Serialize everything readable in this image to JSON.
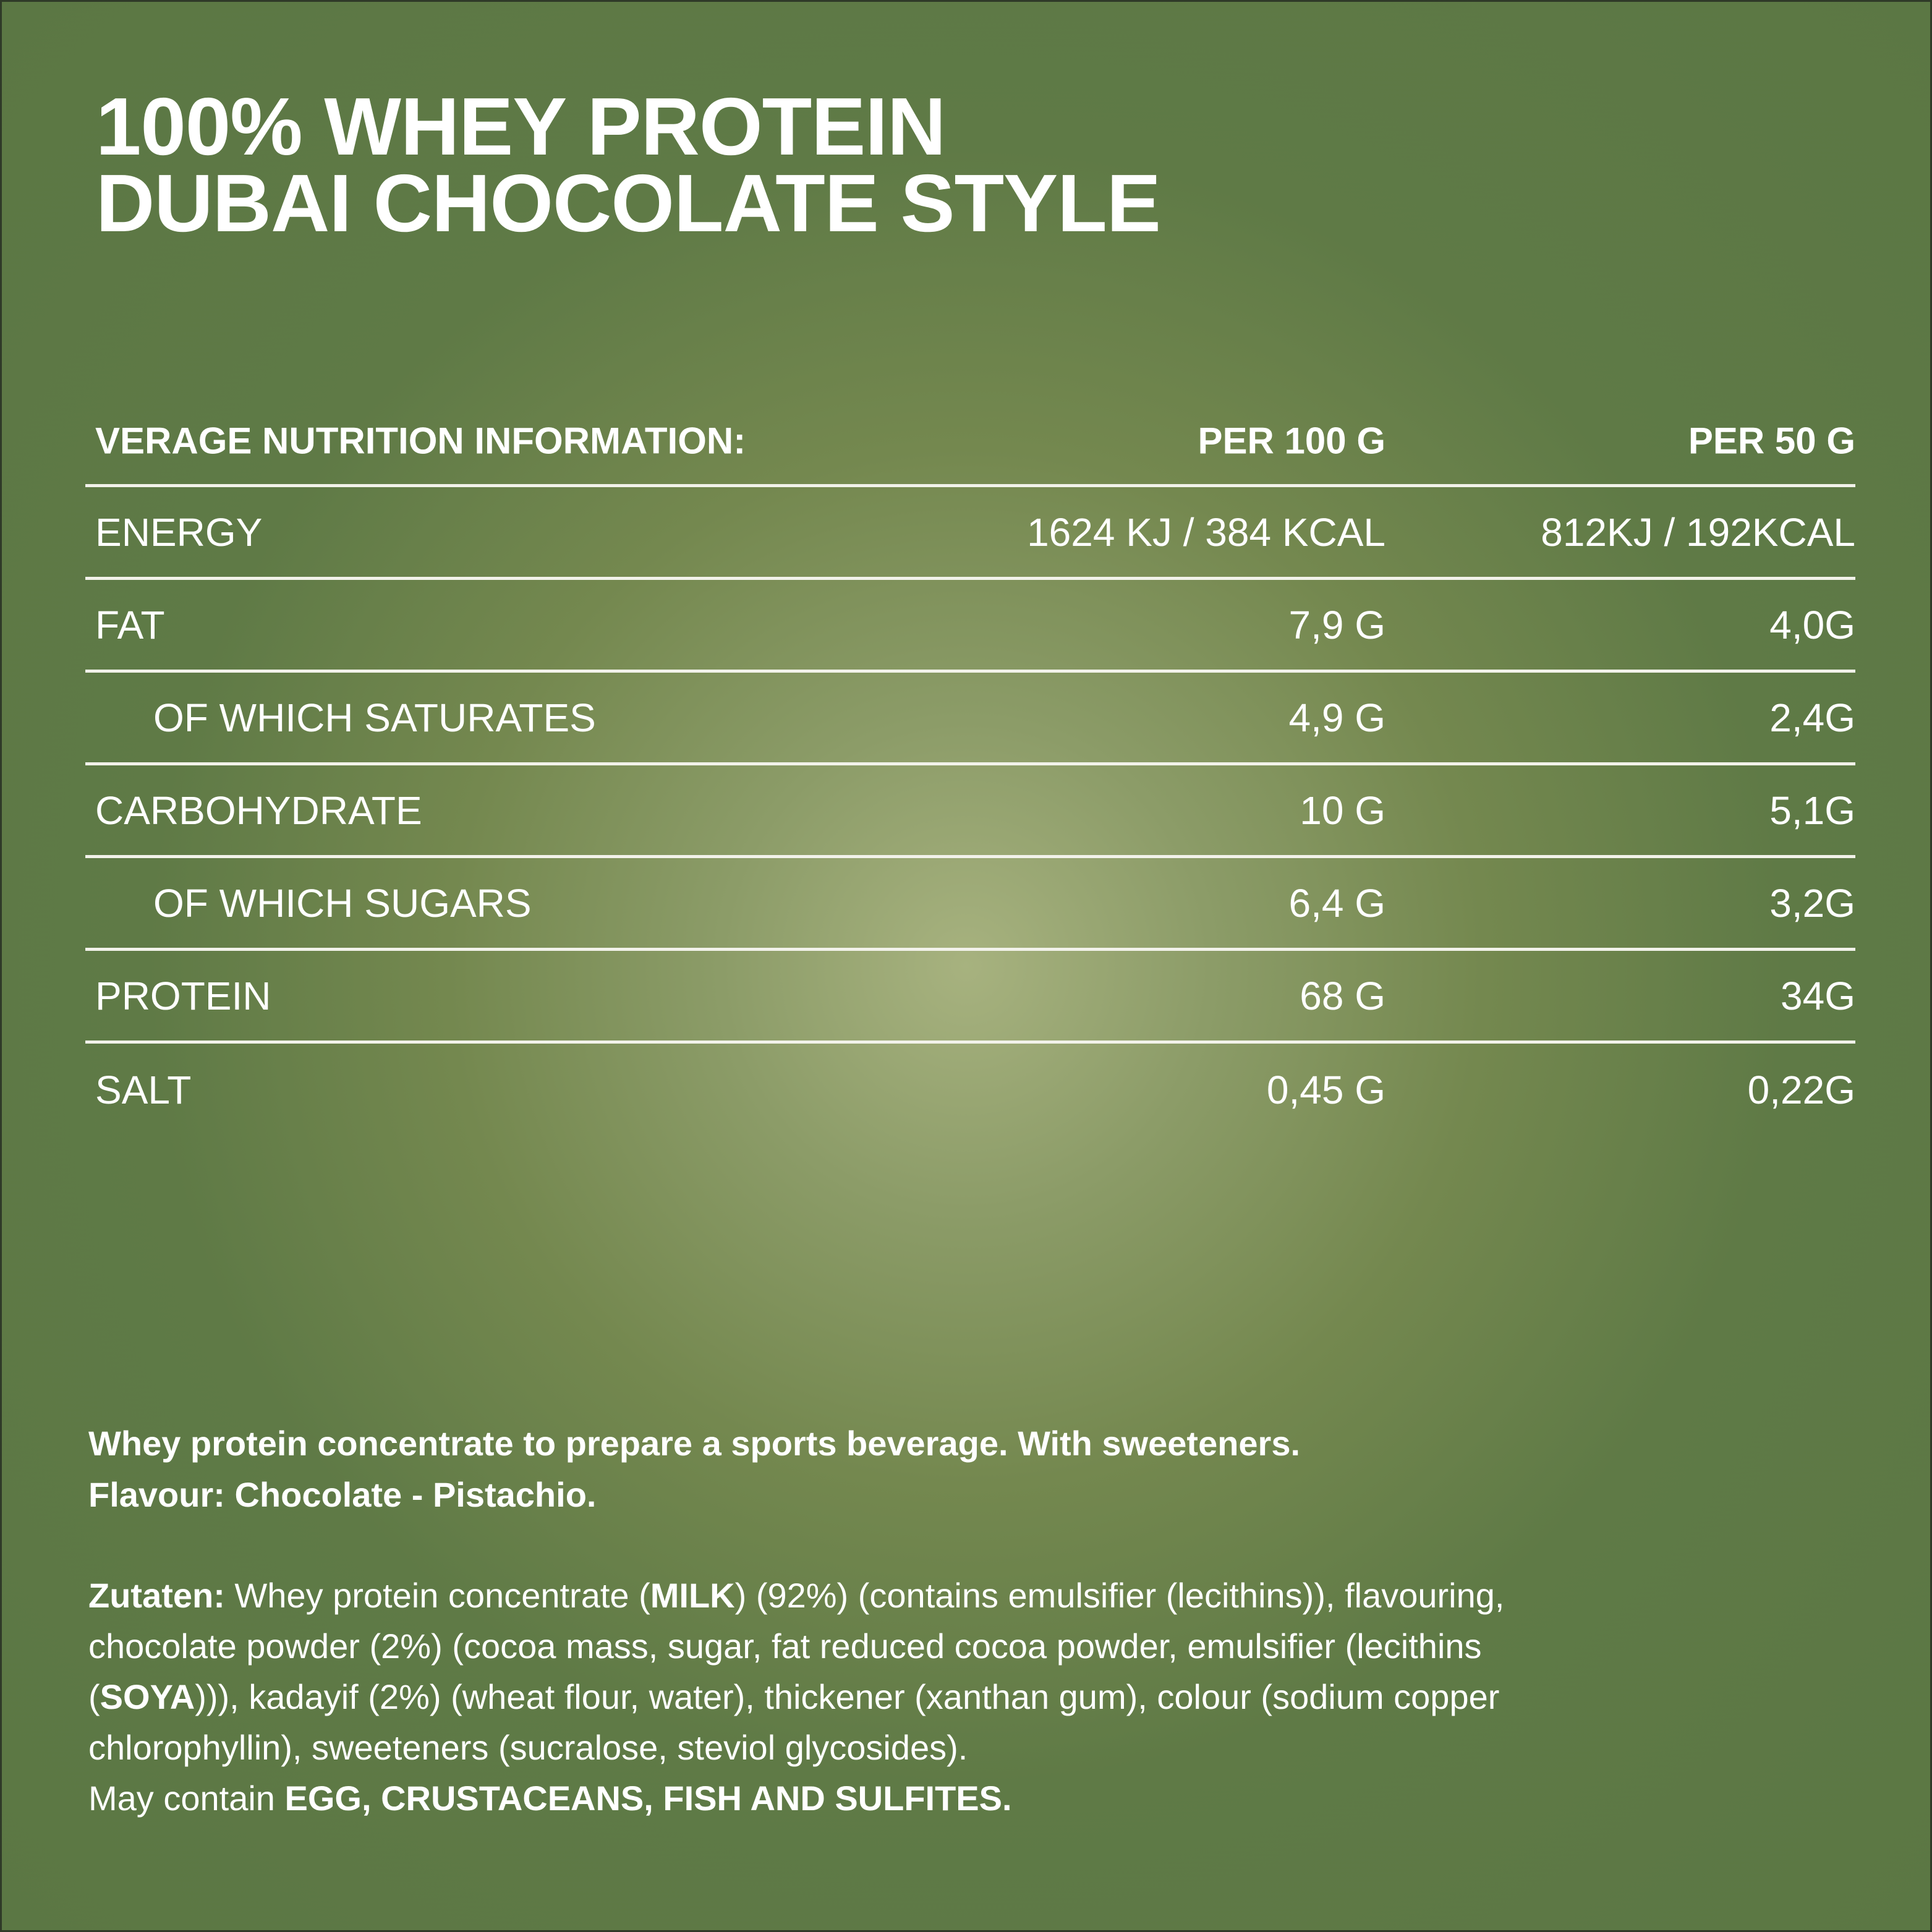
{
  "title": {
    "line1": "100% WHEY PROTEIN",
    "line2": "DUBAI CHOCOLATE STYLE"
  },
  "colors": {
    "background": "#5e7a46",
    "background_center": "#a7b27f",
    "text": "#ffffff"
  },
  "nutrition": {
    "header": {
      "label": "VERAGE NUTRITION INFORMATION:",
      "per100": "PER 100 G",
      "per50": "PER 50 G"
    },
    "rows": [
      {
        "label": "ENERGY",
        "per100": "1624 KJ / 384 KCAL",
        "per50": "812KJ / 192KCAL",
        "sub": false
      },
      {
        "label": "FAT",
        "per100": "7,9 G",
        "per50": "4,0G",
        "sub": false
      },
      {
        "label": "OF WHICH SATURATES",
        "per100": "4,9 G",
        "per50": "2,4G",
        "sub": true
      },
      {
        "label": "CARBOHYDRATE",
        "per100": "10 G",
        "per50": "5,1G",
        "sub": false
      },
      {
        "label": "OF WHICH SUGARS",
        "per100": "6,4 G",
        "per50": "3,2G",
        "sub": true
      },
      {
        "label": "PROTEIN",
        "per100": "68 G",
        "per50": "34G",
        "sub": false
      },
      {
        "label": "SALT",
        "per100": "0,45 G",
        "per50": "0,22G",
        "sub": false
      }
    ]
  },
  "description": {
    "line1": "Whey protein concentrate to prepare a sports beverage. With sweeteners.",
    "line2": "Flavour: Chocolate - Pistachio."
  },
  "ingredients": {
    "lines": [
      [
        {
          "t": "Zutaten:",
          "b": true
        },
        {
          "t": " Whey protein concentrate (",
          "b": false
        },
        {
          "t": "MILK",
          "b": true
        },
        {
          "t": ") (92%) (contains emulsifier (lecithins)), flavouring,",
          "b": false
        }
      ],
      [
        {
          "t": "chocolate powder (2%) (cocoa mass, sugar, fat reduced cocoa powder, emulsifier (lecithins",
          "b": false
        }
      ],
      [
        {
          "t": "(",
          "b": false
        },
        {
          "t": "SOYA",
          "b": true
        },
        {
          "t": "))), kadayif (2%) (wheat flour, water), thickener (xanthan gum), colour (sodium copper",
          "b": false
        }
      ],
      [
        {
          "t": "chlorophyllin), sweeteners (sucralose, steviol glycosides).",
          "b": false
        }
      ],
      [
        {
          "t": "May contain ",
          "b": false
        },
        {
          "t": "EGG, CRUSTACEANS, FISH AND SULFITES.",
          "b": true
        }
      ]
    ]
  }
}
